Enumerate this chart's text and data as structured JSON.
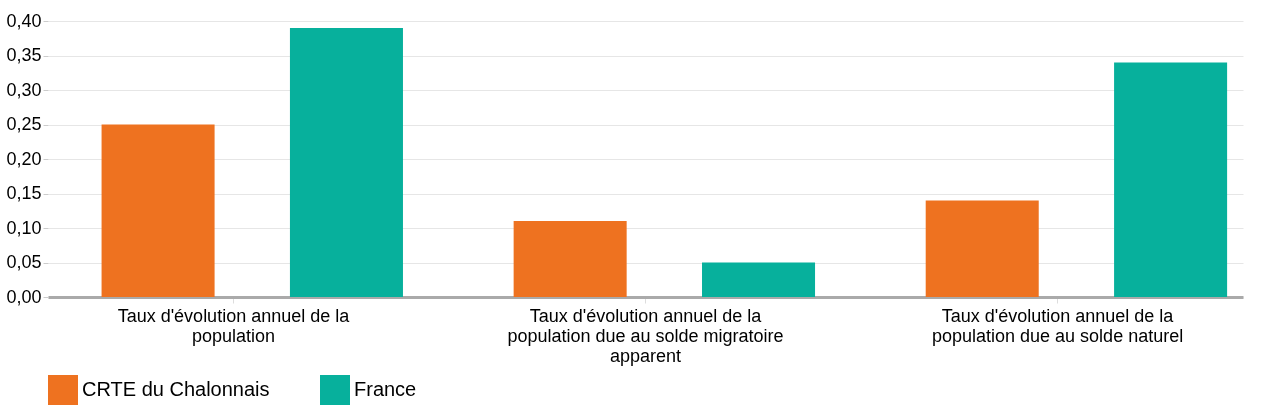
{
  "chart_data": {
    "type": "bar",
    "categories": [
      "Taux d'évolution annuel de la population",
      "Taux d'évolution annuel de la population due au solde migratoire apparent",
      "Taux d'évolution annuel de la population due au solde naturel"
    ],
    "series": [
      {
        "name": "CRTE du Chalonnais",
        "color": "#ee7220",
        "values": [
          0.25,
          0.11,
          0.14
        ]
      },
      {
        "name": "France",
        "color": "#07b09c",
        "values": [
          0.39,
          0.05,
          0.34
        ]
      }
    ],
    "ylim": [
      0,
      0.4
    ],
    "yticks": [
      {
        "value": 0,
        "label": "0,00"
      },
      {
        "value": 0.05,
        "label": "0,05"
      },
      {
        "value": 0.1,
        "label": "0,10"
      },
      {
        "value": 0.15,
        "label": "0,15"
      },
      {
        "value": 0.2,
        "label": "0,20"
      },
      {
        "value": 0.25,
        "label": "0,25"
      },
      {
        "value": 0.3,
        "label": "0,30"
      },
      {
        "value": 0.35,
        "label": "0,35"
      },
      {
        "value": 0.4,
        "label": "0,40"
      }
    ],
    "grid": "y",
    "legend": "bottom"
  }
}
